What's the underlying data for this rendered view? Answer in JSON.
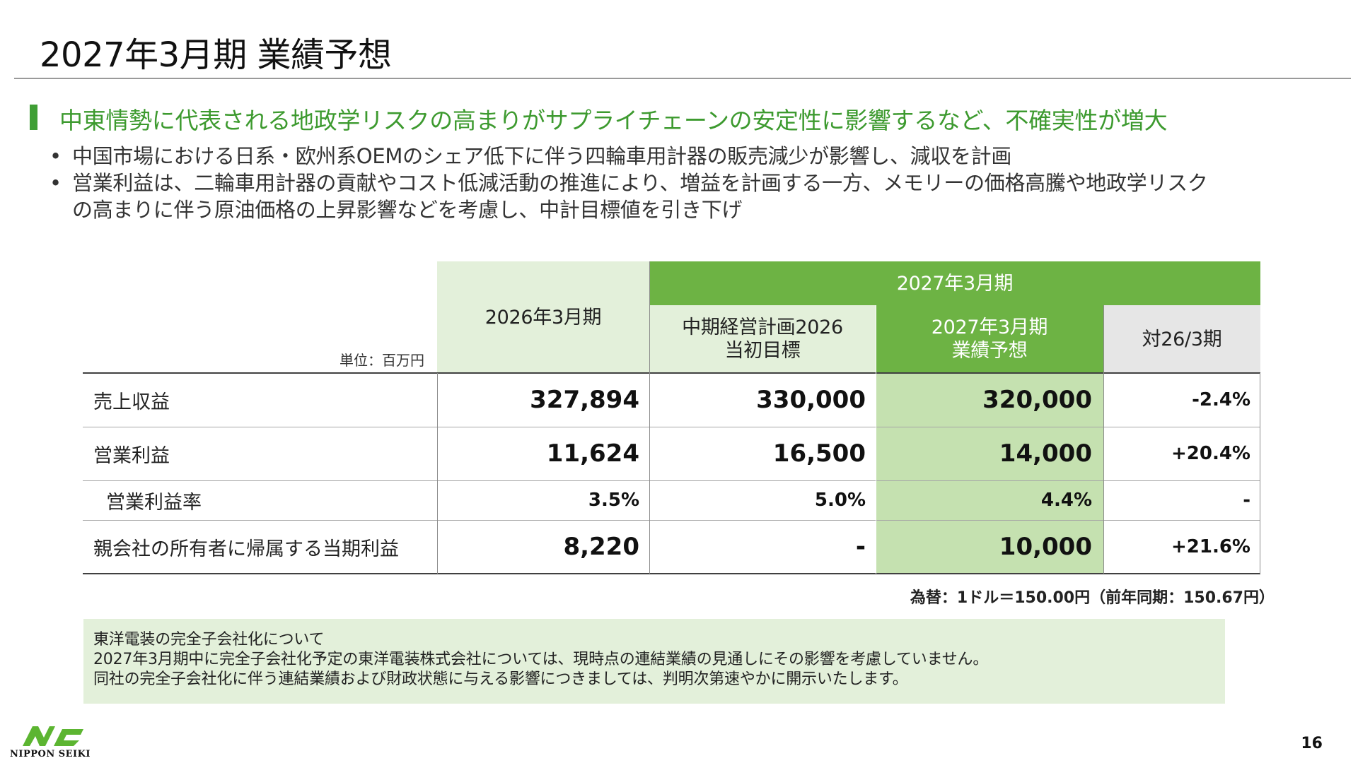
{
  "title": "2027年3月期 業績予想",
  "headline": "中東情勢に代表される地政学リスクの高まりがサプライチェーンの安定性に影響するなど、不確実性が増大",
  "bullets": [
    [
      "中国市場における日系・欧州系OEMのシェア低下に伴う四輪車用計器の販売減少が影響し、減収を計画"
    ],
    [
      "営業利益は、二輪車用計器の貢献やコスト低減活動の推進により、増益を計画する一方、メモリーの価格高騰や地政学リスク",
      "の高まりに伴う原油価格の上昇影響などを考慮し、中計目標値を引き下げ"
    ]
  ],
  "bullet_symbol": "•",
  "table": {
    "unit_label": "単位：百万円",
    "col_fy2026": "2026年3月期",
    "group_header": "2027年3月期",
    "sub_headers": [
      [
        "中期経営計画2026",
        "当初目標"
      ],
      [
        "2027年3月期",
        "業績予想"
      ],
      [
        "対26/3期"
      ]
    ],
    "rows": [
      {
        "label": "売上収益",
        "values": [
          "327,894",
          "330,000",
          "320,000",
          "-2.4%"
        ],
        "size": "big"
      },
      {
        "label": "営業利益",
        "values": [
          "11,624",
          "16,500",
          "14,000",
          "+20.4%"
        ],
        "size": "big"
      },
      {
        "label": "営業利益率",
        "values": [
          "3.5%",
          "5.0%",
          "4.4%",
          "-"
        ],
        "size": "small",
        "indent": true
      },
      {
        "label": "親会社の所有者に帰属する当期利益",
        "values": [
          "8,220",
          "-",
          "10,000",
          "+21.6%"
        ],
        "size": "big"
      }
    ]
  },
  "fx_note": "為替：1ドル＝150.00円（前年同期：150.67円）",
  "note_box": [
    "東洋電装の完全子会社化について",
    "2027年3月期中に完全子会社化予定の東洋電装株式会社については、現時点の連結業績の見通しにその影響を考慮していません。",
    "同社の完全子会社化に伴う連結業績および財政状態に与える影響につきましては、判明次第速やかに開示いたします。"
  ],
  "logo_text": "NIPPON SEIKI",
  "page_number": "16",
  "colors": {
    "accent_green": "#3d9a2f",
    "header_green": "#6db344",
    "header_light": "#e3f0da",
    "highlight_column": "#c5e1b0",
    "header_gray": "#e6e6e6"
  }
}
